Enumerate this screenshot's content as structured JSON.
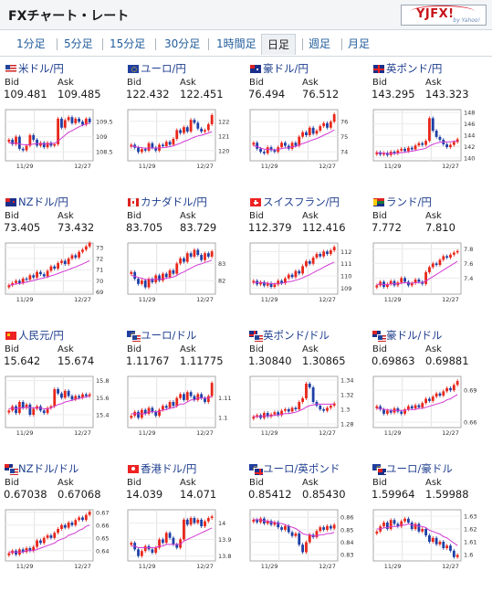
{
  "header": {
    "title": "FXチャート・レート",
    "logo_text": "YJFX!",
    "logo_sub": "by Yahoo!"
  },
  "tabs": [
    {
      "label": "1分足"
    },
    {
      "label": "5分足"
    },
    {
      "label": "15分足"
    },
    {
      "label": "30分足"
    },
    {
      "label": "1時間足"
    },
    {
      "label": "日足",
      "active": true
    },
    {
      "label": "週足"
    },
    {
      "label": "月足"
    }
  ],
  "labels": {
    "bid": "Bid",
    "ask": "Ask"
  },
  "colors": {
    "up": "#e8271a",
    "down": "#1d3fa6",
    "ma": "#d33ad3",
    "link": "#1f3f8f"
  },
  "chart_data": [
    {
      "type": "candlestick",
      "pair": "米ドル/円",
      "flag": "us",
      "bid": "109.481",
      "ask": "109.485",
      "xticks": [
        "11/29",
        "12/27"
      ],
      "yticks": [
        "109.5",
        "109",
        "108.5"
      ],
      "ylim": [
        108.2,
        109.9
      ],
      "close": [
        108.9,
        108.75,
        109.0,
        108.6,
        108.55,
        108.7,
        109.05,
        108.9,
        108.7,
        108.8,
        108.65,
        108.8,
        108.7,
        108.75,
        109.6,
        109.3,
        109.55,
        109.65,
        109.45,
        109.6,
        109.5,
        109.4,
        109.6,
        109.48
      ],
      "ma": [
        108.8,
        108.78,
        108.78,
        108.76,
        108.74,
        108.73,
        108.74,
        108.76,
        108.77,
        108.77,
        108.76,
        108.76,
        108.77,
        108.78,
        108.85,
        108.95,
        109.05,
        109.15,
        109.2,
        109.27,
        109.33,
        109.38,
        109.42,
        109.45
      ]
    },
    {
      "type": "candlestick",
      "pair": "ユーロ/円",
      "flag": "eu",
      "bid": "122.432",
      "ask": "122.451",
      "xticks": [
        "11/29",
        "12/27"
      ],
      "yticks": [
        "122",
        "121",
        "120"
      ],
      "ylim": [
        119.3,
        122.8
      ],
      "close": [
        120.4,
        120.2,
        119.9,
        120.1,
        120.0,
        120.5,
        120.2,
        120.0,
        120.4,
        120.3,
        120.6,
        120.4,
        120.8,
        121.4,
        121.2,
        121.6,
        121.3,
        122.1,
        121.9,
        121.5,
        121.3,
        121.4,
        121.8,
        122.43
      ],
      "ma": [
        120.3,
        120.28,
        120.22,
        120.2,
        120.15,
        120.17,
        120.18,
        120.16,
        120.18,
        120.2,
        120.24,
        120.26,
        120.32,
        120.42,
        120.5,
        120.62,
        120.7,
        120.82,
        120.92,
        121.0,
        121.05,
        121.12,
        121.2,
        121.3
      ]
    },
    {
      "type": "candlestick",
      "pair": "豪ドル/円",
      "flag": "au",
      "bid": "76.494",
      "ask": "76.512",
      "xticks": [
        "11/29",
        "12/27"
      ],
      "yticks": [
        "76",
        "75",
        "74"
      ],
      "ylim": [
        73.4,
        76.8
      ],
      "close": [
        74.6,
        74.2,
        74.0,
        73.9,
        74.3,
        74.1,
        74.0,
        74.3,
        74.6,
        74.4,
        74.2,
        74.6,
        74.4,
        75.0,
        75.3,
        75.1,
        75.6,
        75.2,
        75.4,
        75.7,
        75.9,
        75.6,
        76.0,
        76.49
      ],
      "ma": [
        74.4,
        74.35,
        74.25,
        74.18,
        74.16,
        74.14,
        74.12,
        74.15,
        74.22,
        74.25,
        74.27,
        74.33,
        74.36,
        74.45,
        74.55,
        74.62,
        74.72,
        74.8,
        74.88,
        74.98,
        75.1,
        75.2,
        75.32,
        75.45
      ]
    },
    {
      "type": "candlestick",
      "pair": "英ポンド/円",
      "flag": "gb",
      "bid": "143.295",
      "ask": "143.323",
      "xticks": [
        "11/29",
        "12/27"
      ],
      "yticks": [
        "148",
        "146",
        "144",
        "142",
        "140"
      ],
      "ylim": [
        139.5,
        148.5
      ],
      "close": [
        141.0,
        140.6,
        140.9,
        140.5,
        141.1,
        140.8,
        141.3,
        141.6,
        141.2,
        141.8,
        141.5,
        142.2,
        142.6,
        142.3,
        143.0,
        147.0,
        144.8,
        143.7,
        143.2,
        142.4,
        141.9,
        142.3,
        142.8,
        143.3
      ],
      "ma": [
        140.9,
        140.85,
        140.82,
        140.78,
        140.8,
        140.8,
        140.85,
        140.95,
        141.0,
        141.1,
        141.18,
        141.3,
        141.45,
        141.55,
        141.7,
        142.1,
        142.4,
        142.6,
        142.75,
        142.8,
        142.82,
        142.85,
        142.9,
        142.95
      ]
    },
    {
      "type": "candlestick",
      "pair": "NZドル/円",
      "flag": "nz",
      "bid": "73.405",
      "ask": "73.432",
      "xticks": [
        "11/29",
        "12/27"
      ],
      "yticks": [
        "73",
        "72",
        "71",
        "70",
        "69"
      ],
      "ylim": [
        68.8,
        73.4
      ],
      "close": [
        69.6,
        69.8,
        70.0,
        69.8,
        70.2,
        70.1,
        70.5,
        70.3,
        70.8,
        70.6,
        70.4,
        70.9,
        71.3,
        71.1,
        71.6,
        71.8,
        71.5,
        72.0,
        72.3,
        72.1,
        72.6,
        72.8,
        73.1,
        73.41
      ],
      "ma": [
        69.6,
        69.65,
        69.72,
        69.75,
        69.82,
        69.88,
        69.96,
        70.02,
        70.12,
        70.2,
        70.25,
        70.34,
        70.45,
        70.54,
        70.66,
        70.78,
        70.88,
        71.0,
        71.14,
        71.25,
        71.38,
        71.52,
        71.66,
        71.82
      ]
    },
    {
      "type": "candlestick",
      "pair": "カナダドル/円",
      "flag": "ca",
      "bid": "83.705",
      "ask": "83.729",
      "xticks": [
        "11/29",
        "12/27"
      ],
      "yticks": [
        "83",
        "82"
      ],
      "ylim": [
        81.2,
        84.2
      ],
      "close": [
        82.5,
        82.1,
        81.8,
        82.0,
        81.6,
        82.1,
        81.9,
        82.3,
        82.0,
        82.4,
        82.2,
        82.6,
        82.4,
        83.0,
        83.3,
        83.1,
        83.6,
        83.4,
        83.8,
        83.5,
        83.2,
        83.6,
        83.4,
        83.71
      ],
      "ma": [
        82.3,
        82.25,
        82.18,
        82.14,
        82.06,
        82.06,
        82.04,
        82.08,
        82.06,
        82.1,
        82.12,
        82.18,
        82.2,
        82.3,
        82.42,
        82.5,
        82.62,
        82.72,
        82.84,
        82.92,
        82.98,
        83.06,
        83.12,
        83.2
      ]
    },
    {
      "type": "candlestick",
      "pair": "スイスフラン/円",
      "flag": "ch",
      "bid": "112.379",
      "ask": "112.416",
      "xticks": [
        "11/29",
        "12/27"
      ],
      "yticks": [
        "112",
        "111",
        "110",
        "109"
      ],
      "ylim": [
        108.5,
        112.7
      ],
      "close": [
        109.6,
        109.3,
        109.5,
        109.2,
        109.4,
        109.1,
        109.3,
        109.6,
        109.4,
        109.8,
        110.1,
        109.9,
        110.4,
        110.2,
        110.8,
        111.2,
        111.0,
        111.5,
        111.8,
        111.6,
        112.0,
        111.8,
        112.1,
        112.38
      ],
      "ma": [
        109.5,
        109.46,
        109.45,
        109.42,
        109.4,
        109.36,
        109.36,
        109.38,
        109.4,
        109.45,
        109.52,
        109.56,
        109.65,
        109.72,
        109.84,
        109.98,
        110.1,
        110.26,
        110.42,
        110.55,
        110.72,
        110.86,
        111.0,
        111.14
      ]
    },
    {
      "type": "candlestick",
      "pair": "ランド/円",
      "flag": "za",
      "bid": "7.772",
      "ask": "7.810",
      "xticks": [
        "11/29",
        "12/27"
      ],
      "yticks": [
        "7.8",
        "7.6",
        "7.4"
      ],
      "ylim": [
        7.18,
        7.88
      ],
      "close": [
        7.3,
        7.35,
        7.28,
        7.32,
        7.36,
        7.3,
        7.34,
        7.4,
        7.35,
        7.3,
        7.33,
        7.38,
        7.35,
        7.32,
        7.48,
        7.55,
        7.6,
        7.58,
        7.65,
        7.7,
        7.68,
        7.72,
        7.75,
        7.77
      ],
      "ma": [
        7.31,
        7.32,
        7.31,
        7.31,
        7.32,
        7.32,
        7.32,
        7.33,
        7.34,
        7.33,
        7.33,
        7.34,
        7.34,
        7.34,
        7.36,
        7.39,
        7.42,
        7.45,
        7.48,
        7.51,
        7.54,
        7.57,
        7.6,
        7.63
      ]
    },
    {
      "type": "candlestick",
      "pair": "人民元/円",
      "flag": "cn",
      "bid": "15.642",
      "ask": "15.674",
      "xticks": [
        "11/29",
        "12/27"
      ],
      "yticks": [
        "15.8",
        "15.6",
        "15.4"
      ],
      "ylim": [
        15.25,
        15.85
      ],
      "close": [
        15.45,
        15.5,
        15.42,
        15.55,
        15.48,
        15.52,
        15.4,
        15.47,
        15.5,
        15.45,
        15.42,
        15.48,
        15.5,
        15.7,
        15.65,
        15.6,
        15.68,
        15.62,
        15.58,
        15.62,
        15.6,
        15.64,
        15.62,
        15.64
      ],
      "ma": [
        15.47,
        15.48,
        15.47,
        15.48,
        15.48,
        15.49,
        15.48,
        15.48,
        15.48,
        15.48,
        15.47,
        15.47,
        15.48,
        15.5,
        15.52,
        15.53,
        15.55,
        15.56,
        15.57,
        15.58,
        15.59,
        15.6,
        15.61,
        15.62
      ]
    },
    {
      "type": "candlestick",
      "pair": "ユーロ/ドル",
      "flag": "eu-us",
      "bid": "1.11767",
      "ask": "1.11775",
      "xticks": [
        "11/29",
        "12/27"
      ],
      "yticks": [
        "1.11",
        "1.1"
      ],
      "ylim": [
        1.095,
        1.121
      ],
      "close": [
        1.101,
        1.103,
        1.1,
        1.104,
        1.102,
        1.105,
        1.103,
        1.101,
        1.104,
        1.106,
        1.105,
        1.108,
        1.106,
        1.11,
        1.112,
        1.109,
        1.113,
        1.111,
        1.109,
        1.112,
        1.11,
        1.108,
        1.111,
        1.1177
      ],
      "ma": [
        1.102,
        1.102,
        1.102,
        1.102,
        1.102,
        1.103,
        1.103,
        1.103,
        1.103,
        1.104,
        1.104,
        1.105,
        1.105,
        1.106,
        1.107,
        1.107,
        1.108,
        1.109,
        1.109,
        1.11,
        1.11,
        1.11,
        1.11,
        1.111
      ]
    },
    {
      "type": "candlestick",
      "pair": "英ポンド/ドル",
      "flag": "gb-us",
      "bid": "1.30840",
      "ask": "1.30865",
      "xticks": [
        "11/29",
        "12/27"
      ],
      "yticks": [
        "1.34",
        "1.32",
        "1.3",
        "1.28"
      ],
      "ylim": [
        1.275,
        1.345
      ],
      "close": [
        1.29,
        1.292,
        1.288,
        1.295,
        1.29,
        1.293,
        1.296,
        1.292,
        1.298,
        1.3,
        1.297,
        1.302,
        1.3,
        1.31,
        1.315,
        1.335,
        1.33,
        1.31,
        1.305,
        1.3,
        1.298,
        1.302,
        1.305,
        1.308
      ],
      "ma": [
        1.29,
        1.29,
        1.29,
        1.291,
        1.291,
        1.291,
        1.292,
        1.292,
        1.293,
        1.294,
        1.294,
        1.295,
        1.296,
        1.298,
        1.3,
        1.303,
        1.305,
        1.306,
        1.307,
        1.307,
        1.307,
        1.307,
        1.307,
        1.307
      ]
    },
    {
      "type": "candlestick",
      "pair": "豪ドル/ドル",
      "flag": "au-us",
      "bid": "0.69863",
      "ask": "0.69881",
      "xticks": [
        "11/29",
        "12/27"
      ],
      "yticks": [
        "0.69",
        "0.66"
      ],
      "ylim": [
        0.655,
        0.703
      ],
      "close": [
        0.675,
        0.672,
        0.668,
        0.671,
        0.669,
        0.673,
        0.67,
        0.668,
        0.672,
        0.675,
        0.673,
        0.676,
        0.674,
        0.678,
        0.682,
        0.68,
        0.684,
        0.687,
        0.685,
        0.689,
        0.692,
        0.69,
        0.695,
        0.6986
      ],
      "ma": [
        0.673,
        0.673,
        0.672,
        0.672,
        0.671,
        0.671,
        0.671,
        0.671,
        0.671,
        0.672,
        0.672,
        0.672,
        0.673,
        0.673,
        0.674,
        0.675,
        0.676,
        0.677,
        0.678,
        0.679,
        0.681,
        0.682,
        0.684,
        0.686
      ]
    },
    {
      "type": "candlestick",
      "pair": "NZドル/ドル",
      "flag": "nz-us",
      "bid": "0.67038",
      "ask": "0.67068",
      "xticks": [
        "11/29",
        "12/27"
      ],
      "yticks": [
        "0.67",
        "0.66",
        "0.65",
        "0.64"
      ],
      "ylim": [
        0.632,
        0.672
      ],
      "close": [
        0.638,
        0.64,
        0.637,
        0.641,
        0.639,
        0.642,
        0.64,
        0.643,
        0.648,
        0.646,
        0.65,
        0.652,
        0.65,
        0.654,
        0.657,
        0.66,
        0.658,
        0.662,
        0.66,
        0.664,
        0.666,
        0.664,
        0.668,
        0.6704
      ],
      "ma": [
        0.639,
        0.639,
        0.639,
        0.639,
        0.639,
        0.64,
        0.64,
        0.64,
        0.641,
        0.642,
        0.643,
        0.644,
        0.645,
        0.646,
        0.648,
        0.649,
        0.65,
        0.652,
        0.653,
        0.654,
        0.656,
        0.657,
        0.659,
        0.66
      ]
    },
    {
      "type": "candlestick",
      "pair": "香港ドル/円",
      "flag": "hk",
      "bid": "14.039",
      "ask": "14.071",
      "xticks": [
        "11/29",
        "12/27"
      ],
      "yticks": [
        "14",
        "13.9",
        "13.8"
      ],
      "ylim": [
        13.77,
        14.08
      ],
      "close": [
        13.88,
        13.84,
        13.8,
        13.83,
        13.86,
        13.84,
        13.82,
        13.85,
        13.9,
        13.88,
        13.94,
        13.91,
        13.87,
        13.85,
        13.9,
        14.02,
        13.99,
        14.03,
        14.0,
        14.02,
        13.98,
        14.01,
        14.03,
        14.04
      ],
      "ma": [
        13.86,
        13.86,
        13.85,
        13.85,
        13.85,
        13.85,
        13.85,
        13.85,
        13.86,
        13.86,
        13.87,
        13.87,
        13.87,
        13.87,
        13.87,
        13.89,
        13.9,
        13.91,
        13.92,
        13.93,
        13.94,
        13.95,
        13.96,
        13.97
      ]
    },
    {
      "type": "candlestick",
      "pair": "ユーロ/英ポンド",
      "flag": "eu-gb",
      "bid": "0.85412",
      "ask": "0.85430",
      "xticks": [
        "11/29",
        "12/27"
      ],
      "yticks": [
        "0.86",
        "0.85",
        "0.84",
        "0.83"
      ],
      "ylim": [
        0.825,
        0.866
      ],
      "close": [
        0.858,
        0.856,
        0.859,
        0.855,
        0.857,
        0.854,
        0.856,
        0.852,
        0.85,
        0.853,
        0.848,
        0.845,
        0.847,
        0.838,
        0.832,
        0.84,
        0.846,
        0.844,
        0.849,
        0.852,
        0.85,
        0.853,
        0.851,
        0.854
      ],
      "ma": [
        0.858,
        0.858,
        0.858,
        0.857,
        0.857,
        0.856,
        0.856,
        0.855,
        0.855,
        0.854,
        0.853,
        0.852,
        0.851,
        0.849,
        0.847,
        0.846,
        0.846,
        0.845,
        0.845,
        0.846,
        0.846,
        0.847,
        0.847,
        0.848
      ]
    },
    {
      "type": "candlestick",
      "pair": "ユーロ/豪ドル",
      "flag": "eu-au",
      "bid": "1.59964",
      "ask": "1.59988",
      "xticks": [
        "11/29",
        "12/27"
      ],
      "yticks": [
        "1.63",
        "1.62",
        "1.61",
        "1.6"
      ],
      "ylim": [
        1.595,
        1.635
      ],
      "close": [
        1.618,
        1.622,
        1.625,
        1.62,
        1.627,
        1.624,
        1.622,
        1.626,
        1.628,
        1.625,
        1.62,
        1.624,
        1.618,
        1.62,
        1.615,
        1.61,
        1.613,
        1.608,
        1.61,
        1.605,
        1.607,
        1.603,
        1.598,
        1.5996
      ],
      "ma": [
        1.62,
        1.62,
        1.621,
        1.621,
        1.622,
        1.622,
        1.622,
        1.623,
        1.623,
        1.624,
        1.623,
        1.623,
        1.622,
        1.622,
        1.621,
        1.619,
        1.618,
        1.617,
        1.616,
        1.614,
        1.613,
        1.611,
        1.609,
        1.607
      ]
    }
  ]
}
